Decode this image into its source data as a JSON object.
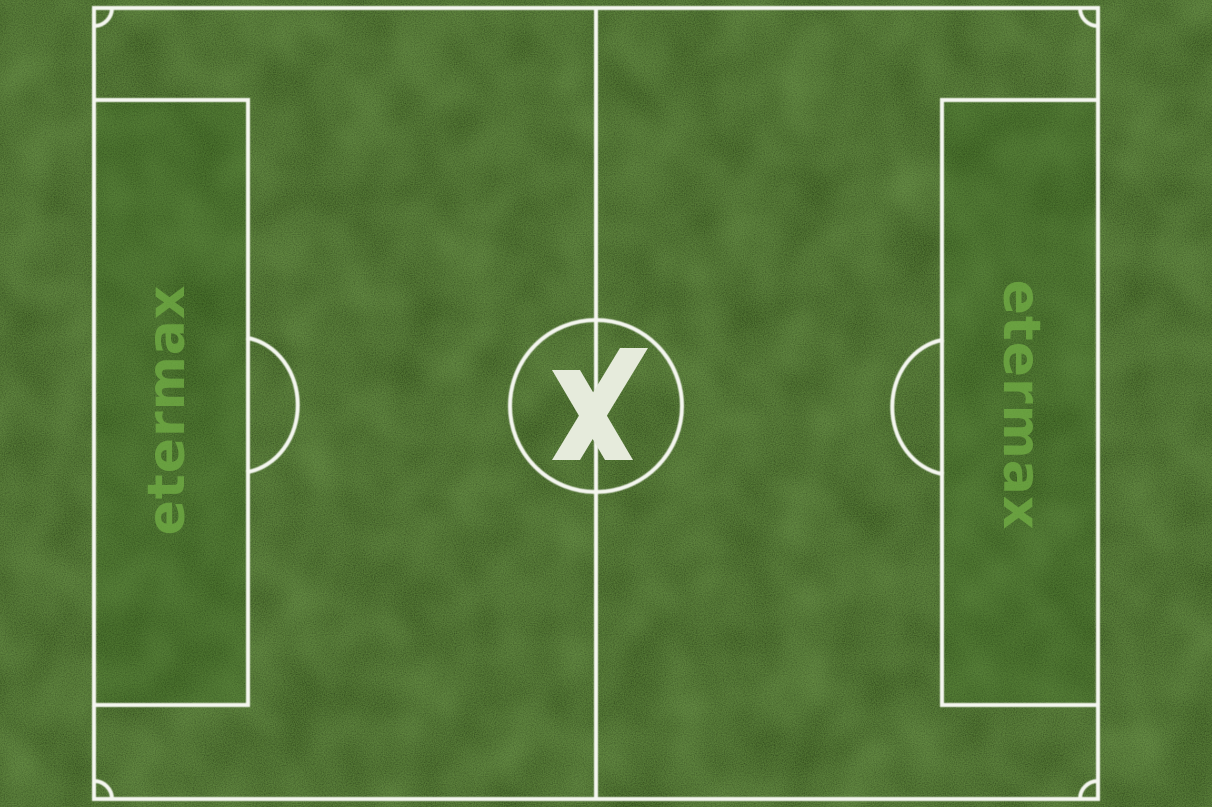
{
  "pitch": {
    "grass_color": "#3f7a1d",
    "grass_light": "#55932b",
    "grass_dark": "#2f6214",
    "line_color": "#f4f6ef",
    "logo_color": "#e6ebdc",
    "brand_tint": "#73b046"
  },
  "branding": {
    "left_wordmark": "etermax",
    "right_wordmark": "etermax",
    "center_logo": "etermax-x-logo"
  }
}
